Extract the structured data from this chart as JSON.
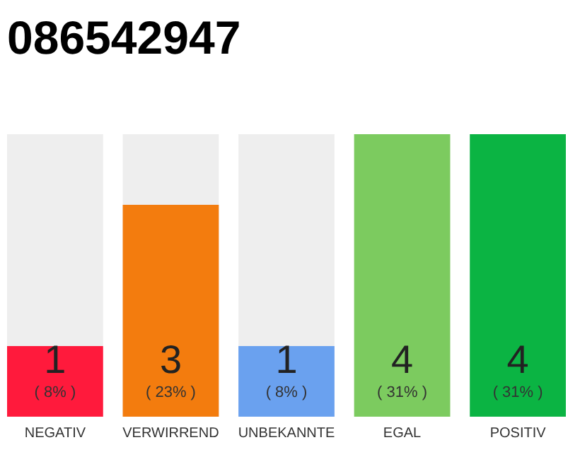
{
  "chart_data": {
    "type": "bar",
    "title": "086542947",
    "categories": [
      "NEGATIV",
      "VERWIRREND",
      "UNBEKANNTE",
      "EGAL",
      "POSITIV"
    ],
    "values": [
      1,
      3,
      1,
      4,
      4
    ],
    "colors": [
      "#ff1a3c",
      "#f37c0e",
      "#6aa1ef",
      "#7ccb5f",
      "#0bb443"
    ],
    "tick_labels": "x",
    "legend": false,
    "data_labels": true,
    "annotations": [
      "( 8% )",
      "( 23% )",
      "( 8% )",
      "( 31% )",
      "( 31% )"
    ]
  }
}
